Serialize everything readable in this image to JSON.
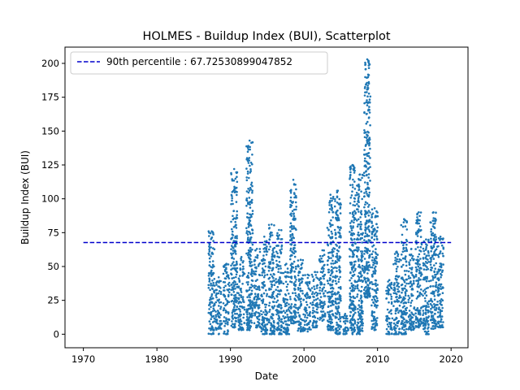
{
  "colors": {
    "scatter": "#1f77b4",
    "percentile_line": "#0000cc",
    "axes": "#000000",
    "background": "#ffffff",
    "legend_border": "#cccccc"
  },
  "chart_data": {
    "type": "scatter",
    "title": "HOLMES - Buildup Index (BUI), Scatterplot",
    "xlabel": "Date",
    "ylabel": "Buildup Index (BUI)",
    "xlim": [
      1967.5,
      2022.3
    ],
    "ylim": [
      -10,
      212
    ],
    "xticks": [
      1970,
      1980,
      1990,
      2000,
      2010,
      2020
    ],
    "yticks": [
      0,
      25,
      50,
      75,
      100,
      125,
      150,
      175,
      200
    ],
    "grid": false,
    "legend": {
      "placement": "top-left",
      "entries": [
        {
          "label": "90th percentile : 67.72530899047852",
          "style": "dashed-line"
        }
      ]
    },
    "reference_line": {
      "name": "90th percentile",
      "value": 67.72530899047852,
      "x_start": 1970,
      "x_end": 2020
    },
    "series": [
      {
        "type": "scatter",
        "marker": "dot",
        "seasons": [
          {
            "x": 1987.45,
            "min": 0,
            "max": 76
          },
          {
            "x": 1988.4,
            "min": 0,
            "max": 42
          },
          {
            "x": 1989.45,
            "min": 0,
            "max": 52
          },
          {
            "x": 1990.5,
            "min": 5,
            "max": 122
          },
          {
            "x": 1991.5,
            "min": 3,
            "max": 57
          },
          {
            "x": 1992.6,
            "min": 3,
            "max": 143
          },
          {
            "x": 1993.6,
            "min": 5,
            "max": 63
          },
          {
            "x": 1994.6,
            "min": 0,
            "max": 72
          },
          {
            "x": 1995.6,
            "min": 0,
            "max": 81
          },
          {
            "x": 1996.6,
            "min": 0,
            "max": 77
          },
          {
            "x": 1997.6,
            "min": 0,
            "max": 52
          },
          {
            "x": 1998.55,
            "min": 8,
            "max": 114
          },
          {
            "x": 1999.55,
            "min": 2,
            "max": 55
          },
          {
            "x": 2000.5,
            "min": 2,
            "max": 44
          },
          {
            "x": 2001.5,
            "min": 5,
            "max": 46
          },
          {
            "x": 2002.5,
            "min": 10,
            "max": 62
          },
          {
            "x": 2003.6,
            "min": 3,
            "max": 103
          },
          {
            "x": 2004.6,
            "min": 0,
            "max": 106
          },
          {
            "x": 2005.6,
            "min": 0,
            "max": 15
          },
          {
            "x": 2006.6,
            "min": 0,
            "max": 125
          },
          {
            "x": 2007.6,
            "min": 0,
            "max": 118
          },
          {
            "x": 2008.6,
            "min": 27,
            "max": 203
          },
          {
            "x": 2009.6,
            "min": 3,
            "max": 93
          },
          {
            "x": 2011.6,
            "min": 0,
            "max": 40
          },
          {
            "x": 2012.6,
            "min": 0,
            "max": 61
          },
          {
            "x": 2013.6,
            "min": 0,
            "max": 85
          },
          {
            "x": 2014.6,
            "min": 3,
            "max": 63
          },
          {
            "x": 2015.6,
            "min": 5,
            "max": 90
          },
          {
            "x": 2016.6,
            "min": 0,
            "max": 70
          },
          {
            "x": 2017.6,
            "min": 4,
            "max": 90
          },
          {
            "x": 2018.55,
            "min": 5,
            "max": 72
          }
        ]
      }
    ]
  }
}
